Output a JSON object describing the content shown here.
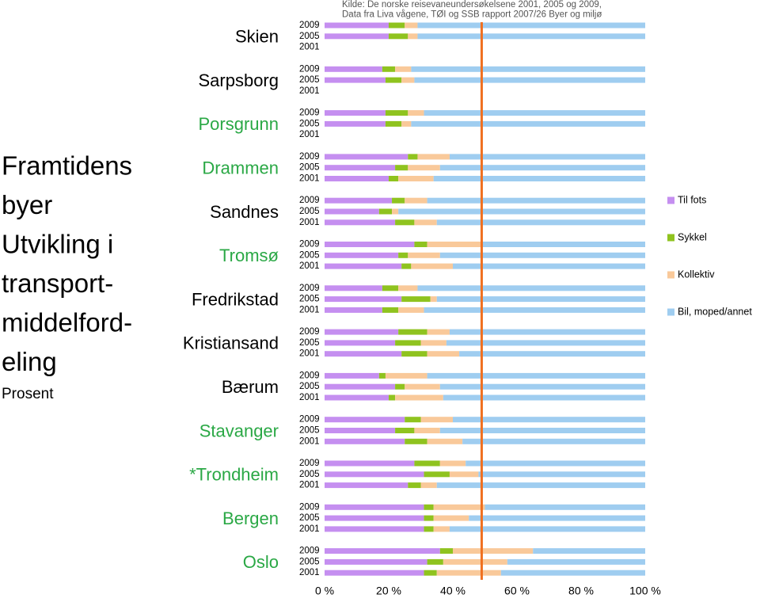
{
  "chart_data": {
    "type": "stacked-bar-horizontal",
    "title_lines": [
      "Framtidens",
      "byer",
      "Utvikling i",
      "transport-",
      "middelford-",
      "eling"
    ],
    "subtitle": "Prosent",
    "source_lines": [
      "Kilde: De norske reisevaneundersøkelsene 2001, 2005 og 2009,",
      "Data fra Liva vågene, TØI og SSB rapport 2007/26 Byer og miljø"
    ],
    "groups": [
      {
        "name": "Skien",
        "color": "#000000"
      },
      {
        "name": "Sarpsborg",
        "color": "#000000"
      },
      {
        "name": "Porsgrunn",
        "color": "#2aa845"
      },
      {
        "name": "Drammen",
        "color": "#2aa845"
      },
      {
        "name": "Sandnes",
        "color": "#000000"
      },
      {
        "name": "Tromsø",
        "color": "#2aa845"
      },
      {
        "name": "Fredrikstad",
        "color": "#000000"
      },
      {
        "name": "Kristiansand",
        "color": "#000000"
      },
      {
        "name": "Bærum",
        "color": "#000000"
      },
      {
        "name": "Stavanger",
        "color": "#2aa845"
      },
      {
        "name": "*Trondheim",
        "color": "#2aa845"
      },
      {
        "name": "Bergen",
        "color": "#2aa845"
      },
      {
        "name": "Oslo",
        "color": "#2aa845"
      }
    ],
    "categories": [
      "2009",
      "2005",
      "2001",
      "2009",
      "2005",
      "2001",
      "2009",
      "2005",
      "2001",
      "2009",
      "2005",
      "2001",
      "2009",
      "2005",
      "2001",
      "2009",
      "2005",
      "2001",
      "2009",
      "2005",
      "2001",
      "2009",
      "2005",
      "2001",
      "2009",
      "2005",
      "2001",
      "2009",
      "2005",
      "2001",
      "2009",
      "2005",
      "2001",
      "2009",
      "2005",
      "2001",
      "2009",
      "2005",
      "2001"
    ],
    "series": [
      {
        "name": "Til fots",
        "color": "#c58ff0",
        "values": [
          20,
          20,
          null,
          18,
          19,
          null,
          19,
          19,
          null,
          26,
          22,
          20,
          21,
          17,
          22,
          28,
          23,
          24,
          18,
          24,
          18,
          23,
          22,
          24,
          17,
          22,
          20,
          25,
          22,
          25,
          28,
          31,
          26,
          31,
          31,
          31,
          36,
          32,
          31
        ]
      },
      {
        "name": "Sykkel",
        "color": "#8fc31f",
        "values": [
          5,
          6,
          null,
          4,
          5,
          null,
          7,
          5,
          null,
          3,
          4,
          3,
          4,
          4,
          6,
          4,
          3,
          3,
          5,
          9,
          5,
          9,
          8,
          8,
          2,
          3,
          2,
          5,
          6,
          7,
          8,
          8,
          4,
          3,
          3,
          3,
          4,
          5,
          4
        ]
      },
      {
        "name": "Kollektiv",
        "color": "#f9c99a",
        "values": [
          4,
          3,
          null,
          5,
          4,
          null,
          5,
          3,
          null,
          10,
          10,
          11,
          7,
          2,
          7,
          17,
          10,
          13,
          6,
          2,
          8,
          7,
          8,
          10,
          13,
          11,
          15,
          10,
          8,
          11,
          8,
          9,
          5,
          16,
          11,
          5,
          25,
          20,
          20
        ]
      },
      {
        "name": "Bil, moped/annet",
        "color": "#9fcdf0",
        "values": [
          71,
          71,
          null,
          73,
          72,
          null,
          69,
          73,
          null,
          61,
          64,
          66,
          68,
          77,
          65,
          51,
          64,
          60,
          71,
          65,
          69,
          61,
          62,
          58,
          68,
          64,
          63,
          60,
          64,
          57,
          56,
          52,
          65,
          50,
          55,
          61,
          35,
          43,
          45
        ]
      }
    ],
    "xlim": [
      0,
      100
    ],
    "xticks": [
      {
        "value": 0,
        "label": "0 %"
      },
      {
        "value": 20,
        "label": "20 %"
      },
      {
        "value": 40,
        "label": "40 %"
      },
      {
        "value": 60,
        "label": "60 %"
      },
      {
        "value": 80,
        "label": "80 %"
      },
      {
        "value": 100,
        "label": "100 %"
      }
    ],
    "reference_value": 49,
    "reference_color": "#f07020",
    "legend": "right"
  }
}
